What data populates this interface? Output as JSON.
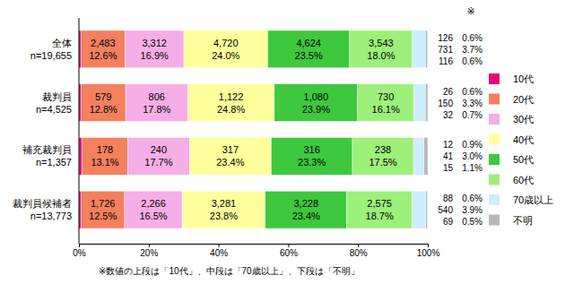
{
  "chart_data": {
    "type": "bar",
    "orientation": "horizontal",
    "stacked": true,
    "data_labels": true,
    "grid": false,
    "legend": "right",
    "categories": [
      "全体",
      "裁判員",
      "補充裁判員",
      "裁判員候補者"
    ],
    "n_labels": [
      "n=19,655",
      "n=4,525",
      "n=1,357",
      "n=13,773"
    ],
    "xlim": [
      0,
      100
    ],
    "xticks": [
      {
        "value": 0,
        "label": "0%"
      },
      {
        "value": 20,
        "label": "20%"
      },
      {
        "value": 40,
        "label": "40%"
      },
      {
        "value": 60,
        "label": "60%"
      },
      {
        "value": 80,
        "label": "80%"
      },
      {
        "value": 100,
        "label": "100%"
      }
    ],
    "note_mark": "※",
    "footnote": "※数値の上段は「10代」、中段は「70歳以上」、下段は「不明」",
    "series": [
      {
        "name": "10代",
        "color": "#e8087a",
        "values": [
          0.6,
          0.6,
          0.9,
          0.6
        ],
        "value_labels": [
          "0.6%",
          "0.6%",
          "0.9%",
          "0.6%"
        ],
        "count_labels": [
          "126",
          "26",
          "12",
          "88"
        ]
      },
      {
        "name": "20代",
        "color": "#f4805e",
        "values": [
          12.6,
          12.8,
          13.1,
          12.5
        ],
        "value_labels": [
          "12.6%",
          "12.8%",
          "13.1%",
          "12.5%"
        ],
        "count_labels": [
          "2,483",
          "579",
          "178",
          "1,726"
        ]
      },
      {
        "name": "30代",
        "color": "#f6aee6",
        "values": [
          16.9,
          17.8,
          17.7,
          16.5
        ],
        "value_labels": [
          "16.9%",
          "17.8%",
          "17.7%",
          "16.5%"
        ],
        "count_labels": [
          "3,312",
          "806",
          "240",
          "2,266"
        ]
      },
      {
        "name": "40代",
        "color": "#ffff9c",
        "values": [
          24.0,
          24.8,
          23.4,
          23.8
        ],
        "value_labels": [
          "24.0%",
          "24.8%",
          "23.4%",
          "23.8%"
        ],
        "count_labels": [
          "4,720",
          "1,122",
          "317",
          "3,281"
        ]
      },
      {
        "name": "50代",
        "color": "#3ec83e",
        "values": [
          23.5,
          23.9,
          23.3,
          23.4
        ],
        "value_labels": [
          "23.5%",
          "23.9%",
          "23.3%",
          "23.4%"
        ],
        "count_labels": [
          "4,624",
          "1,080",
          "316",
          "3,228"
        ]
      },
      {
        "name": "60代",
        "color": "#9df07a",
        "values": [
          18.0,
          16.1,
          17.5,
          18.7
        ],
        "value_labels": [
          "18.0%",
          "16.1%",
          "17.5%",
          "18.7%"
        ],
        "count_labels": [
          "3,543",
          "730",
          "238",
          "2,575"
        ]
      },
      {
        "name": "70歳以上",
        "color": "#cdeefc",
        "values": [
          3.7,
          3.3,
          3.0,
          3.9
        ],
        "value_labels": [
          "3.7%",
          "3.3%",
          "3.0%",
          "3.9%"
        ],
        "count_labels": [
          "731",
          "150",
          "41",
          "540"
        ]
      },
      {
        "name": "不明",
        "color": "#b8b8b8",
        "values": [
          0.6,
          0.7,
          1.1,
          0.5
        ],
        "value_labels": [
          "0.6%",
          "0.7%",
          "1.1%",
          "0.5%"
        ],
        "count_labels": [
          "116",
          "32",
          "15",
          "69"
        ]
      }
    ]
  }
}
